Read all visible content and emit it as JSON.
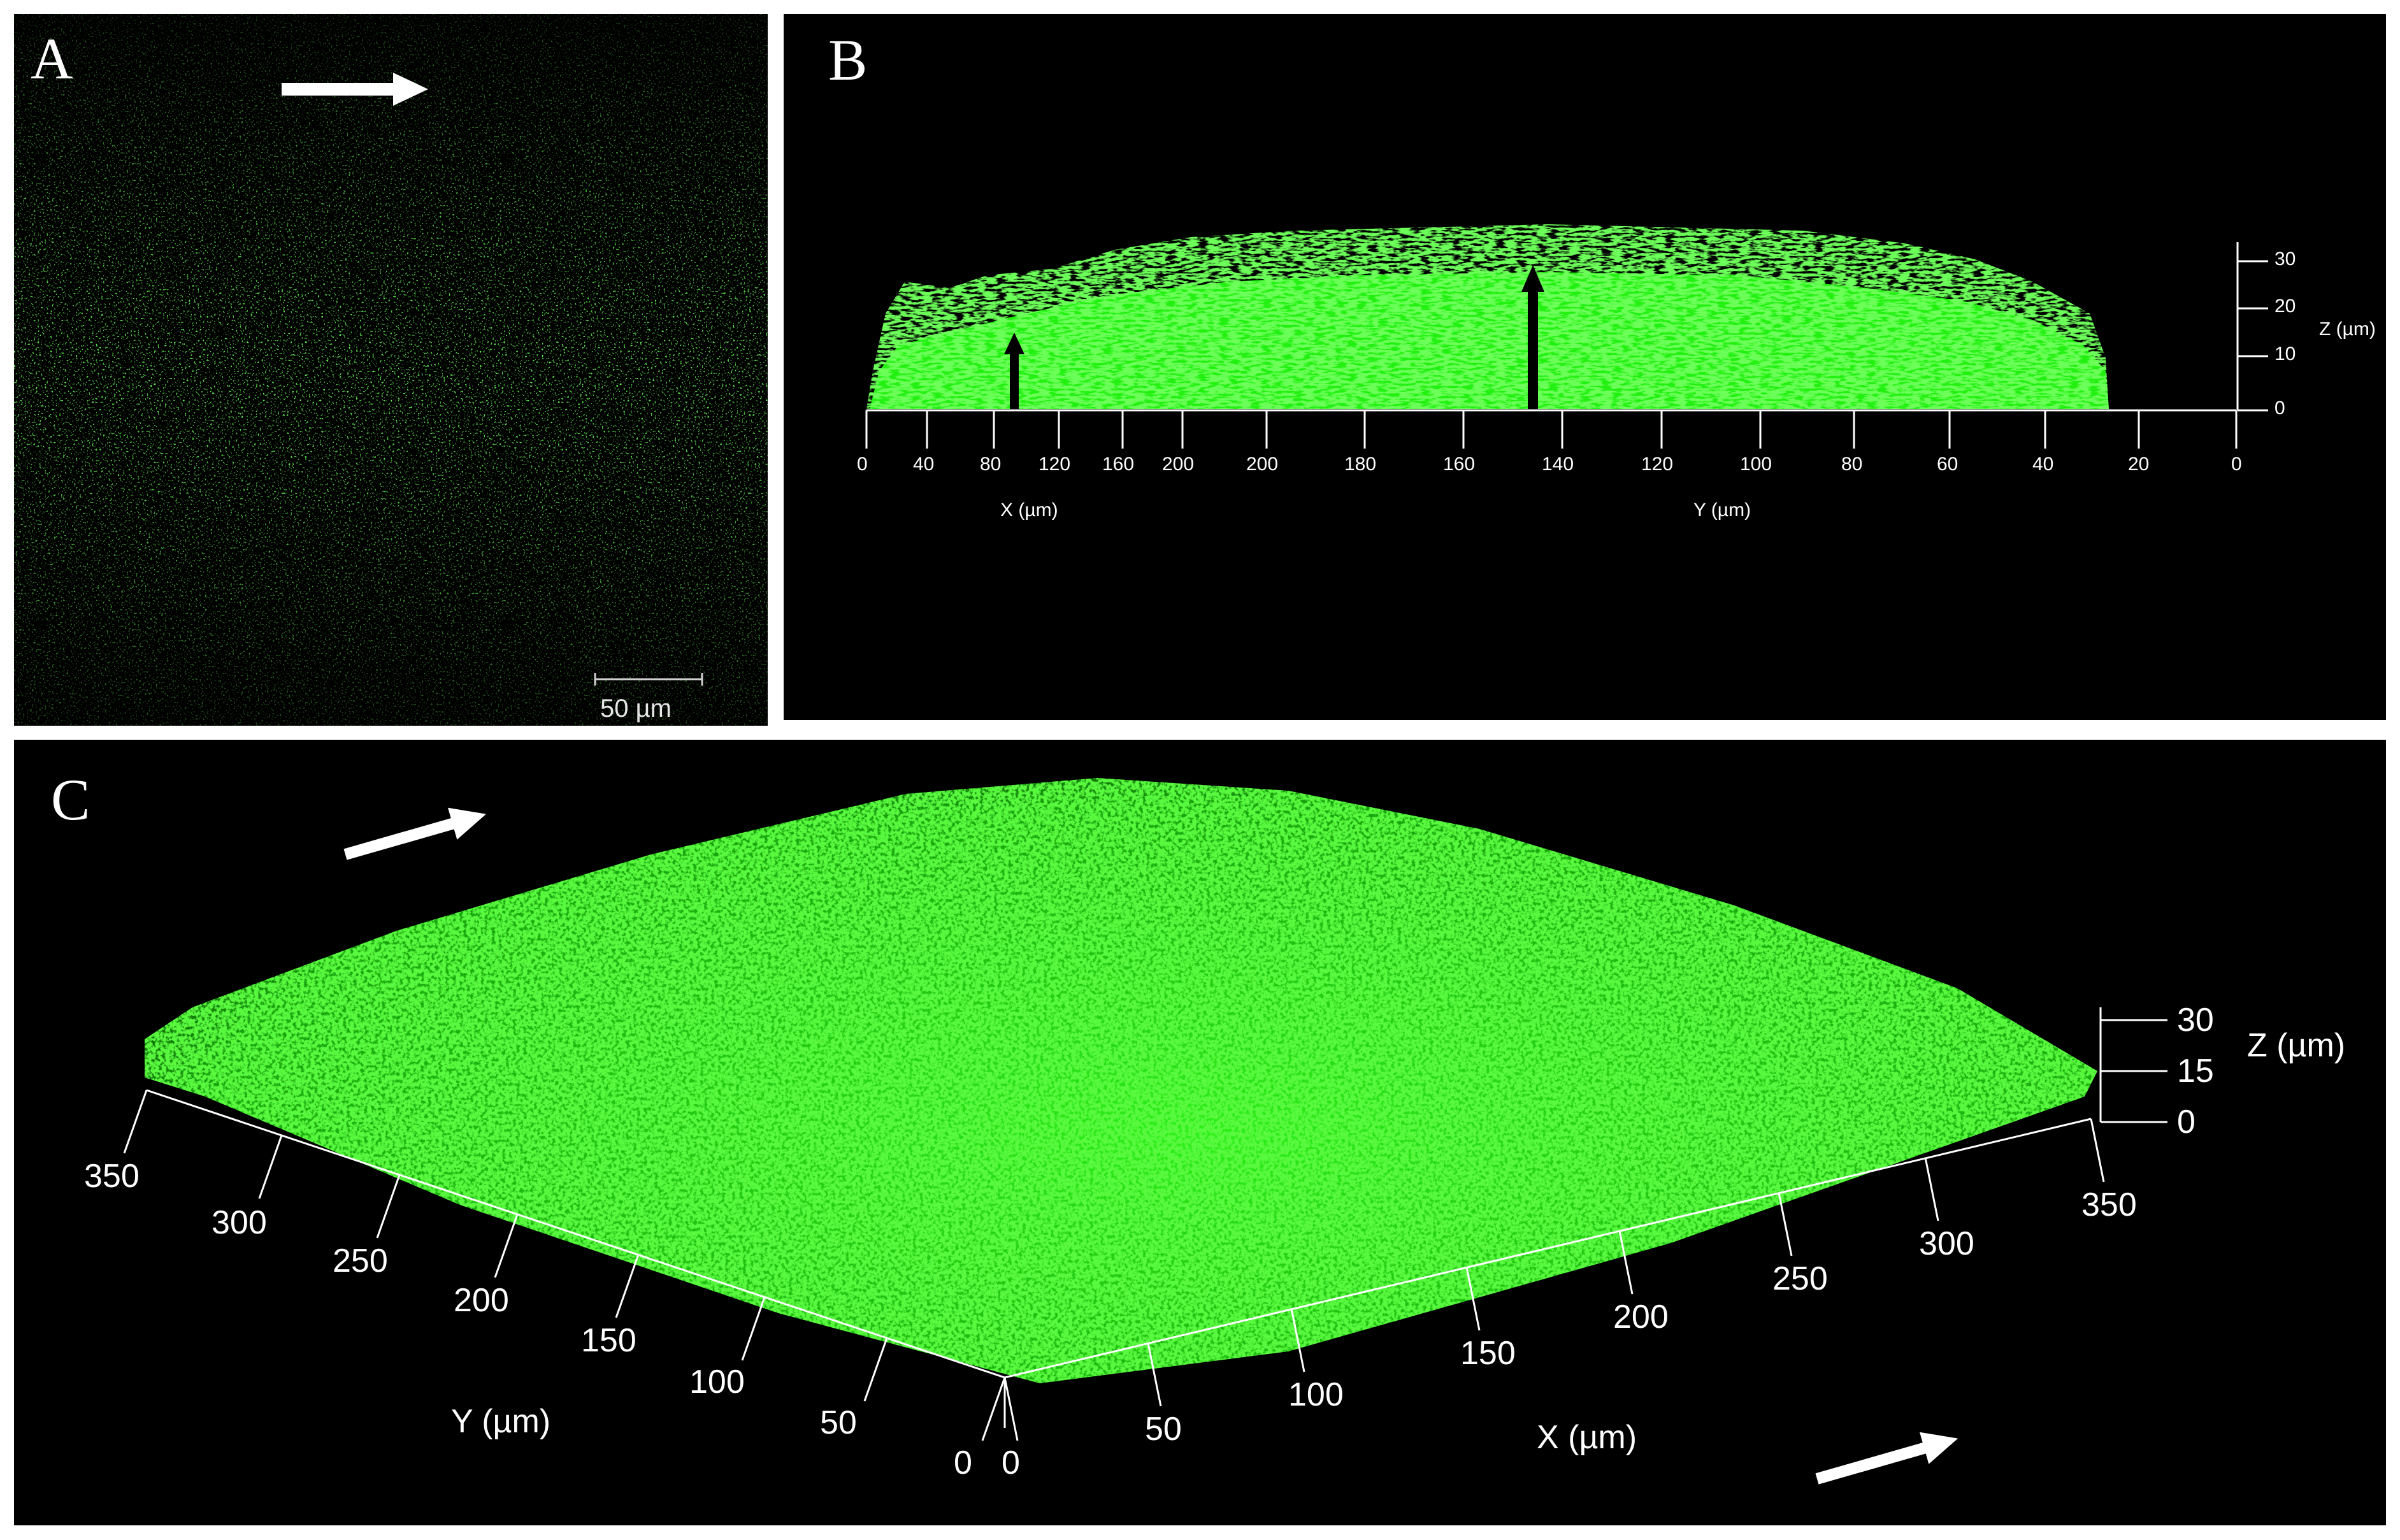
{
  "panels": {
    "a": {
      "letter": "A",
      "scale_bar": {
        "label": "50 µm"
      },
      "flow_arrow": "right-arrow-icon"
    },
    "b": {
      "letter": "B",
      "x_axis": {
        "label": "X (µm)",
        "ticks": [
          "0",
          "40",
          "80",
          "120",
          "160",
          "200"
        ]
      },
      "y_axis": {
        "label": "Y (µm)",
        "ticks": [
          "200",
          "180",
          "160",
          "140",
          "120",
          "100",
          "80",
          "60",
          "40",
          "20",
          "0"
        ]
      },
      "z_axis": {
        "label": "Z (µm)",
        "ticks": [
          "0",
          "10",
          "20",
          "30"
        ]
      },
      "thickness_arrows": "up-arrow-icon"
    },
    "c": {
      "letter": "C",
      "y_axis": {
        "label": "Y (µm)",
        "ticks": [
          "0",
          "50",
          "100",
          "150",
          "200",
          "250",
          "300",
          "350"
        ]
      },
      "x_axis": {
        "label": "X (µm)",
        "ticks": [
          "0",
          "50",
          "100",
          "150",
          "200",
          "250",
          "300",
          "350"
        ]
      },
      "z_axis": {
        "label": "Z (µm)",
        "ticks": [
          "0",
          "15",
          "30"
        ]
      },
      "flow_arrows": "right-arrow-icon"
    }
  },
  "colors": {
    "biofilm": "#22e01a",
    "background": "#000000",
    "axes": "#ffffff"
  }
}
